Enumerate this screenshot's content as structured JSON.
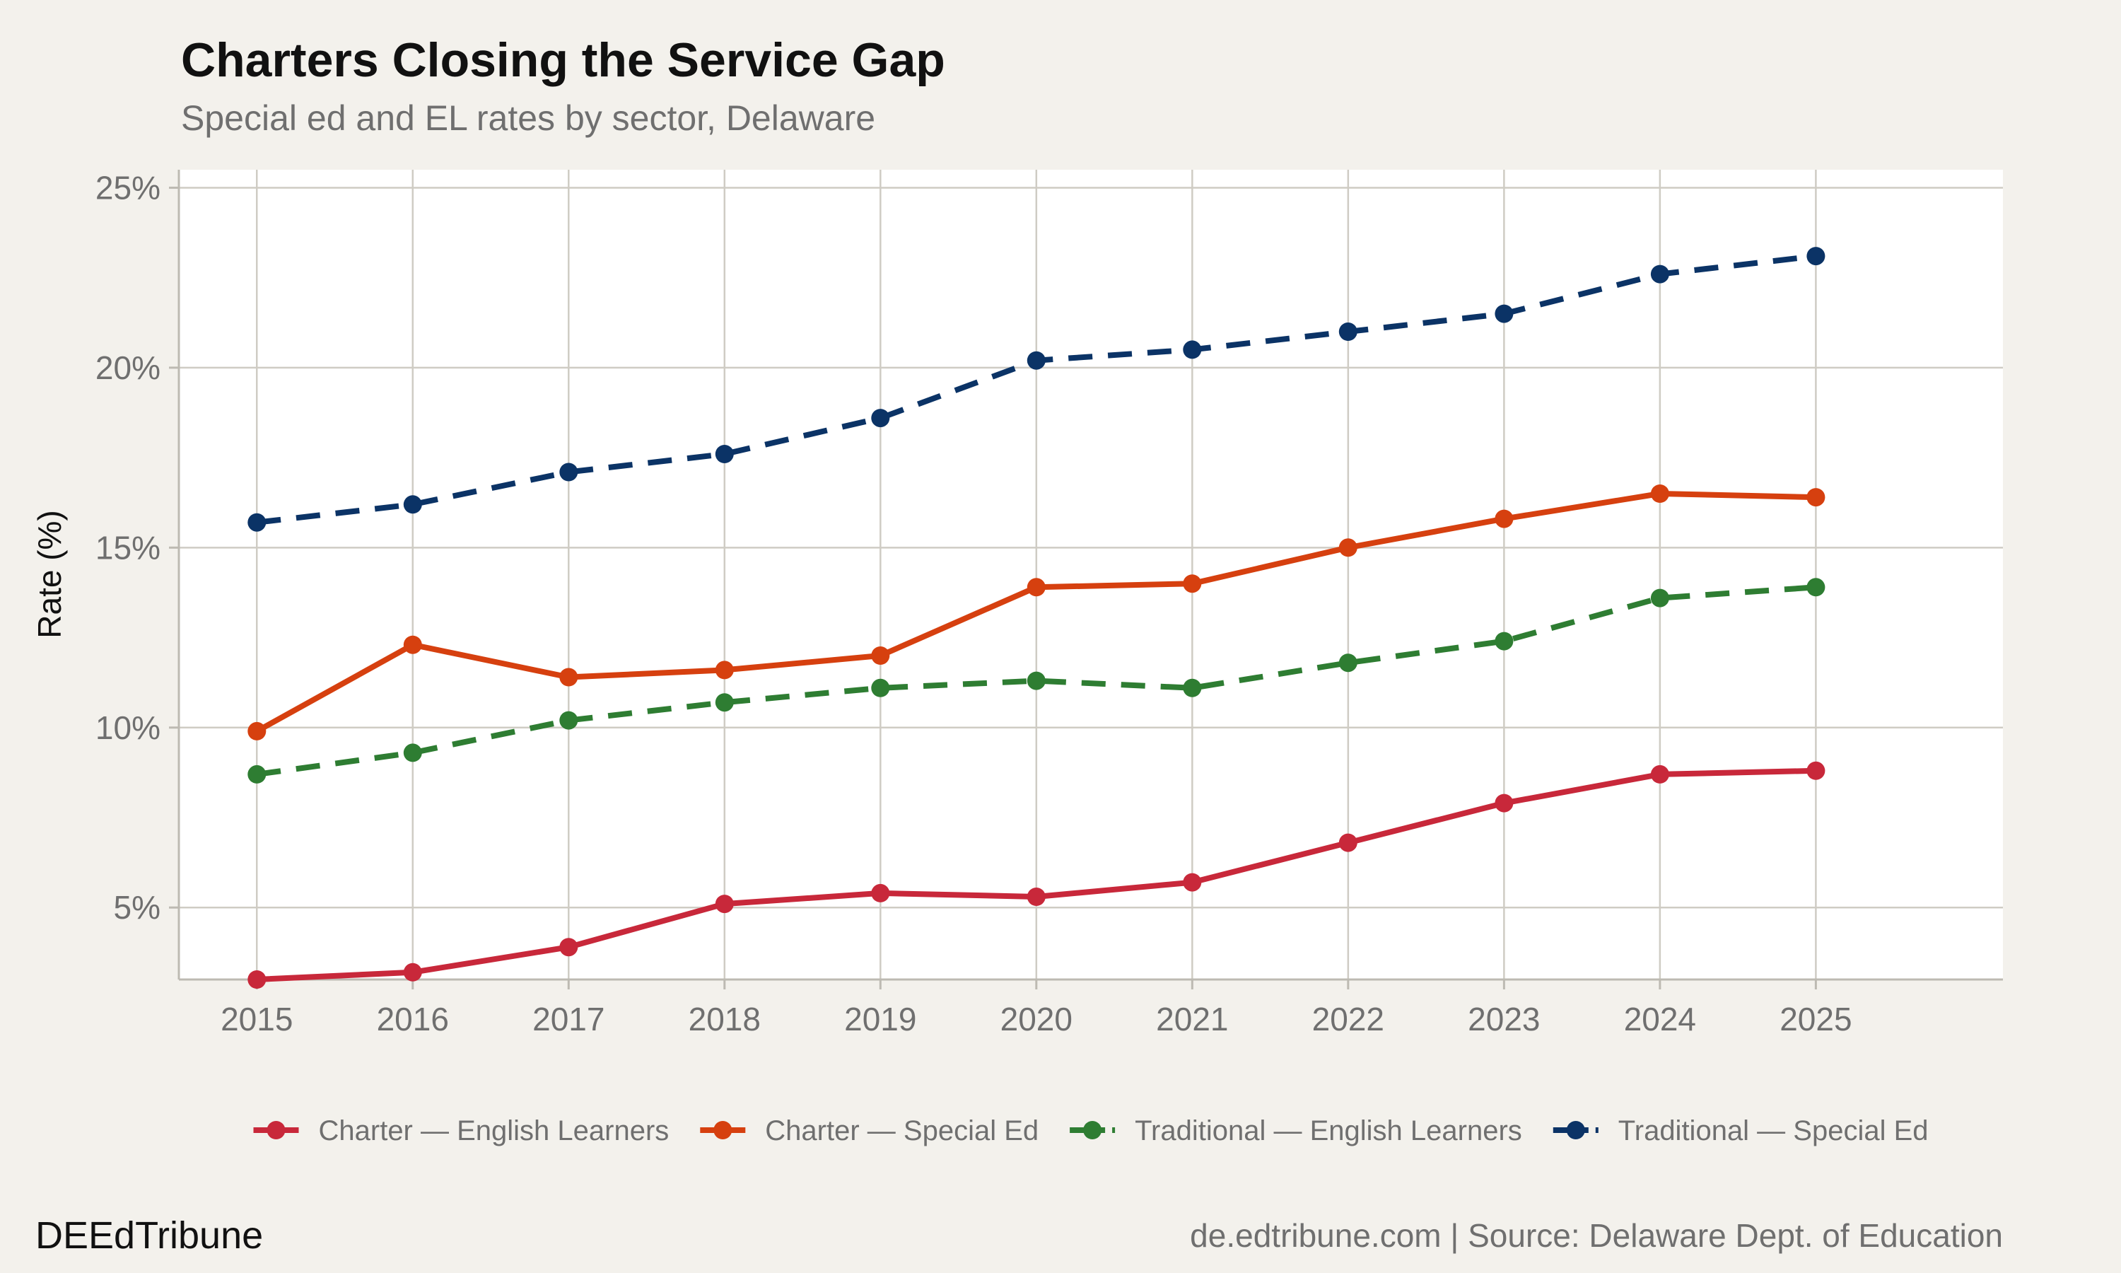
{
  "title": "Charters Closing the Service Gap",
  "subtitle": "Special ed and EL rates by sector, Delaware",
  "footer": {
    "brand": "DEEdTribune",
    "source": "de.edtribune.com | Source: Delaware Dept. of Education"
  },
  "chart_data": {
    "type": "line",
    "title": "Charters Closing the Service Gap",
    "subtitle": "Special ed and EL rates by sector, Delaware",
    "xlabel": "",
    "ylabel": "Rate (%)",
    "x": [
      2015,
      2016,
      2017,
      2018,
      2019,
      2020,
      2021,
      2022,
      2023,
      2024,
      2025
    ],
    "xlim": [
      2014.5,
      2026.2
    ],
    "ylim": [
      3,
      25.5
    ],
    "yticks": [
      5,
      10,
      15,
      20,
      25
    ],
    "ytick_labels": [
      "5%",
      "10%",
      "15%",
      "20%",
      "25%"
    ],
    "xtick_labels": [
      "2015",
      "2016",
      "2017",
      "2018",
      "2019",
      "2020",
      "2021",
      "2022",
      "2023",
      "2024",
      "2025"
    ],
    "grid": true,
    "legend_position": "bottom",
    "series": [
      {
        "name": "Charter — English Learners",
        "color": "#c8283a",
        "dash": "solid",
        "values": [
          3.0,
          3.2,
          3.9,
          5.1,
          5.4,
          5.3,
          5.7,
          6.8,
          7.9,
          8.7,
          8.8
        ]
      },
      {
        "name": "Charter — Special Ed",
        "color": "#d6400f",
        "dash": "solid",
        "values": [
          9.9,
          12.3,
          11.4,
          11.6,
          12.0,
          13.9,
          14.0,
          15.0,
          15.8,
          16.5,
          16.4
        ]
      },
      {
        "name": "Traditional — English Learners",
        "color": "#2e7d32",
        "dash": "dashed",
        "values": [
          8.7,
          9.3,
          10.2,
          10.7,
          11.1,
          11.3,
          11.1,
          11.8,
          12.4,
          13.6,
          13.9
        ]
      },
      {
        "name": "Traditional — Special Ed",
        "color": "#0b3366",
        "dash": "dashed",
        "values": [
          15.7,
          16.2,
          17.1,
          17.6,
          18.6,
          20.2,
          20.5,
          21.0,
          21.5,
          22.6,
          23.1
        ]
      }
    ]
  }
}
